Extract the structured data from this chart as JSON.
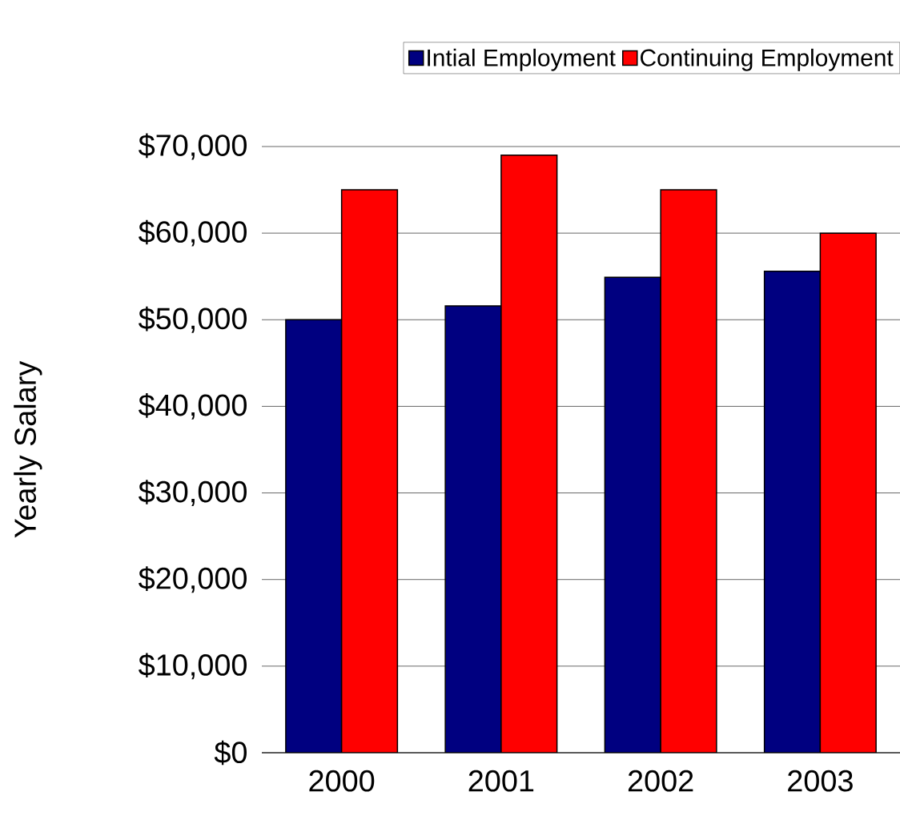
{
  "chart_data": {
    "type": "bar",
    "ylabel": "Yearly Salary",
    "categories": [
      "2000",
      "2001",
      "2002",
      "2003"
    ],
    "series": [
      {
        "name": "Intial Employment",
        "color": "#000080",
        "values": [
          50000,
          51600,
          54900,
          55600
        ]
      },
      {
        "name": "Continuing Employment",
        "color": "#ff0000",
        "values": [
          65000,
          69000,
          65000,
          60000
        ]
      }
    ],
    "ylim": [
      0,
      70000
    ],
    "yticks": [
      {
        "value": 0,
        "label": "$0"
      },
      {
        "value": 10000,
        "label": "$10,000"
      },
      {
        "value": 20000,
        "label": "$20,000"
      },
      {
        "value": 30000,
        "label": "$30,000"
      },
      {
        "value": 40000,
        "label": "$40,000"
      },
      {
        "value": 50000,
        "label": "$50,000"
      },
      {
        "value": 60000,
        "label": "$60,000"
      },
      {
        "value": 70000,
        "label": "$70,000"
      }
    ],
    "grid": "y",
    "legend": "top right"
  }
}
